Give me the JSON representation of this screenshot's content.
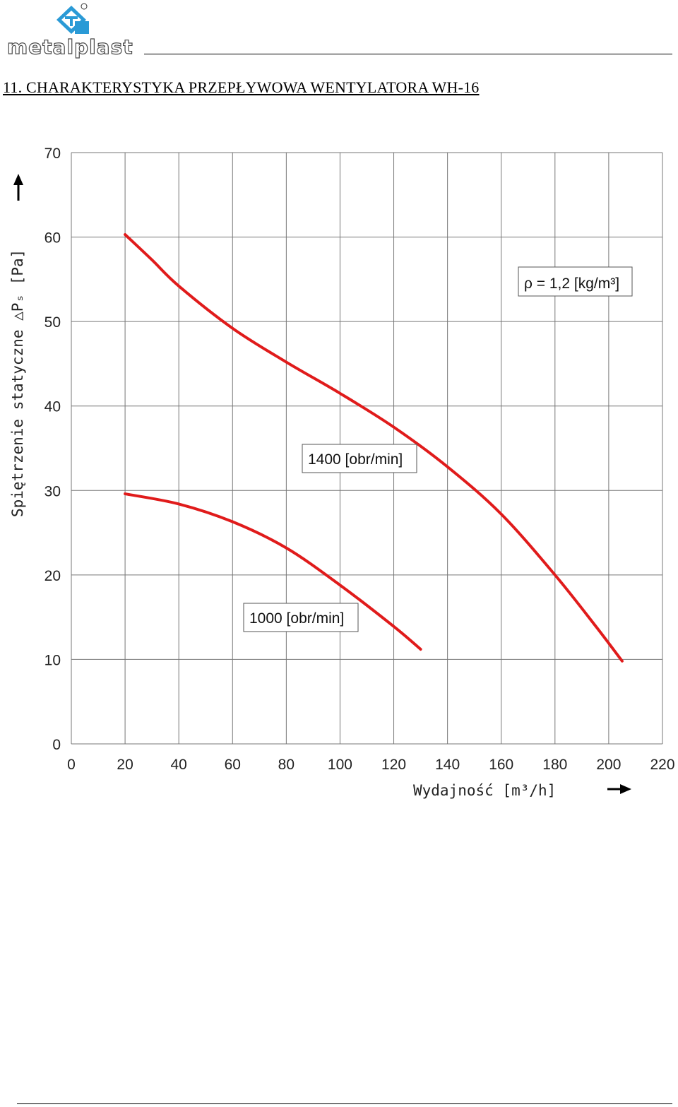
{
  "header": {
    "brand": "metalplast",
    "title": "11. CHARAKTERYSTYKA PRZEPŁYWOWA WENTYLATORA WH-16"
  },
  "colors": {
    "curve": "#e01b1b",
    "grid": "#777777",
    "logo_blue": "#2a9ad6"
  },
  "chart_data": {
    "type": "line",
    "xlabel": "Wydajność [m³/h]",
    "ylabel": "Spiętrzenie statyczne △Pₛ [Pa]",
    "xlim": [
      0,
      220
    ],
    "ylim": [
      0,
      70
    ],
    "x_ticks": [
      0,
      20,
      40,
      60,
      80,
      100,
      120,
      140,
      160,
      180,
      200,
      220
    ],
    "y_ticks": [
      0,
      10,
      20,
      30,
      40,
      50,
      60,
      70
    ],
    "grid": true,
    "series": [
      {
        "name": "1400 [obr/min]",
        "x": [
          20,
          30,
          40,
          60,
          80,
          100,
          120,
          140,
          160,
          180,
          195,
          205
        ],
        "y": [
          60.3,
          57.3,
          54.2,
          49.2,
          45.2,
          41.5,
          37.5,
          32.8,
          27.2,
          20.0,
          14.0,
          9.8
        ]
      },
      {
        "name": "1000 [obr/min]",
        "x": [
          20,
          40,
          60,
          80,
          100,
          120,
          130
        ],
        "y": [
          29.6,
          28.4,
          26.3,
          23.2,
          18.8,
          13.9,
          11.2
        ]
      }
    ],
    "annotations": [
      {
        "id": "density",
        "text": "ρ = 1,2 [kg/m³]"
      },
      {
        "id": "speed1400",
        "text": "1400 [obr/min]"
      },
      {
        "id": "speed1000",
        "text": "1000 [obr/min]"
      }
    ]
  }
}
